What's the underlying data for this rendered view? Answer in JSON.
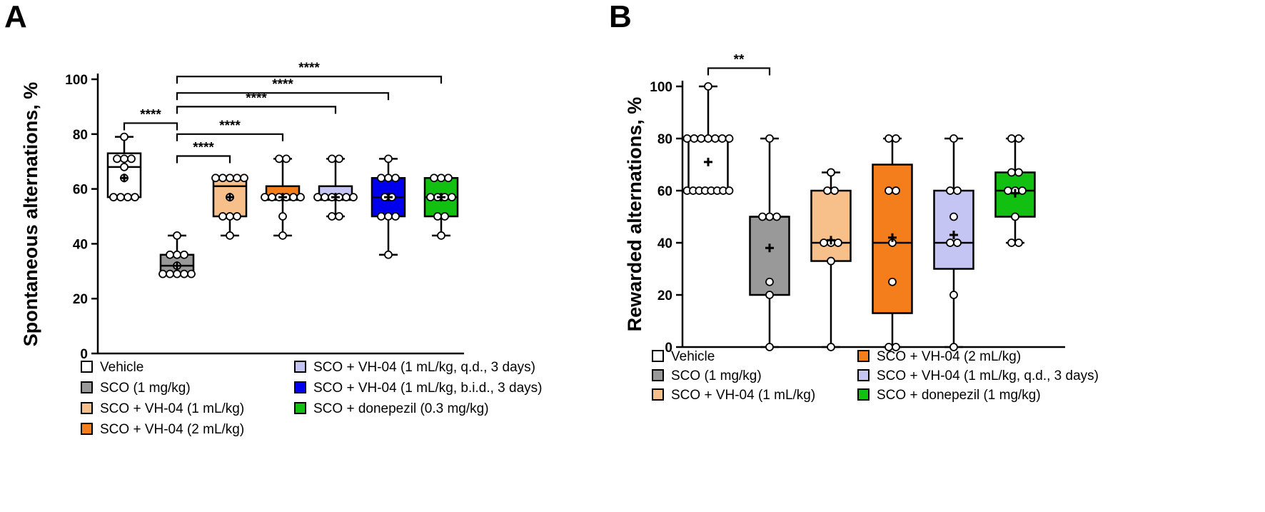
{
  "chart_data": [
    {
      "panel": "A",
      "type": "box",
      "ylabel": "Spontaneous alternations, %",
      "ylim": [
        0,
        100
      ],
      "yticks": [
        0,
        20,
        40,
        60,
        80,
        100
      ],
      "groups": [
        {
          "name": "Vehicle",
          "color": "#ffffff",
          "whisker": [
            57,
            79
          ],
          "q1": 57,
          "median": 68,
          "q3": 73,
          "mean": 64,
          "points": [
            57,
            57,
            57,
            57,
            64,
            68,
            71,
            71,
            71,
            79
          ]
        },
        {
          "name": "SCO (1 mg/kg)",
          "color": "#999999",
          "whisker": [
            29,
            43
          ],
          "q1": 29,
          "median": 32,
          "q3": 36,
          "mean": 32,
          "points": [
            29,
            29,
            29,
            29,
            29,
            32,
            36,
            36,
            36,
            43
          ]
        },
        {
          "name": "SCO + VH-04 (1 mL/kg)",
          "color": "#f7c08b",
          "whisker": [
            43,
            64
          ],
          "q1": 50,
          "median": 61,
          "q3": 64,
          "mean": 57,
          "points": [
            43,
            50,
            50,
            50,
            57,
            64,
            64,
            64,
            64,
            64
          ]
        },
        {
          "name": "SCO + VH-04 (2 mL/kg)",
          "color": "#f47d1c",
          "whisker": [
            43,
            71
          ],
          "q1": 56,
          "median": 57,
          "q3": 61,
          "mean": 57,
          "points": [
            43,
            50,
            57,
            57,
            57,
            57,
            57,
            57,
            71,
            71
          ]
        },
        {
          "name": "SCO + VH-04 (1 mL/kg, q.d., 3 days)",
          "color": "#c5c5f3",
          "whisker": [
            50,
            71
          ],
          "q1": 56,
          "median": 57,
          "q3": 61,
          "mean": 57,
          "points": [
            50,
            50,
            57,
            57,
            57,
            57,
            57,
            57,
            71,
            71
          ]
        },
        {
          "name": "SCO + VH-04 (1 mL/kg, b.i.d., 3 days)",
          "color": "#0000ee",
          "whisker": [
            36,
            71
          ],
          "q1": 50,
          "median": 57,
          "q3": 64,
          "mean": 57,
          "points": [
            36,
            50,
            50,
            50,
            57,
            57,
            64,
            64,
            64,
            71
          ]
        },
        {
          "name": "SCO + donepezil (0.3 mg/kg)",
          "color": "#11c011",
          "whisker": [
            43,
            64
          ],
          "q1": 50,
          "median": 57,
          "q3": 64,
          "mean": 57,
          "points": [
            43,
            50,
            50,
            57,
            57,
            57,
            57,
            64,
            64,
            64
          ]
        }
      ],
      "significance": [
        {
          "from": 0,
          "to": 1,
          "label": "****",
          "y": 84
        },
        {
          "from": 1,
          "to": 2,
          "label": "****",
          "y": 72
        },
        {
          "from": 1,
          "to": 3,
          "label": "****",
          "y": 80
        },
        {
          "from": 1,
          "to": 4,
          "label": "****",
          "y": 90
        },
        {
          "from": 1,
          "to": 5,
          "label": "****",
          "y": 95
        },
        {
          "from": 1,
          "to": 6,
          "label": "****",
          "y": 101
        }
      ],
      "legend_columns": [
        [
          0,
          1,
          2,
          3
        ],
        [
          4,
          5,
          6
        ]
      ]
    },
    {
      "panel": "B",
      "type": "box",
      "ylabel": "Rewarded alternations, %",
      "ylim": [
        0,
        100
      ],
      "yticks": [
        0,
        20,
        40,
        60,
        80,
        100
      ],
      "groups": [
        {
          "name": "Vehicle",
          "color": "#ffffff",
          "whisker": [
            60,
            100
          ],
          "q1": 60,
          "median": 80,
          "q3": 80,
          "mean": 71,
          "points": [
            60,
            60,
            60,
            60,
            60,
            60,
            60,
            60,
            80,
            80,
            80,
            80,
            80,
            80,
            80,
            100
          ]
        },
        {
          "name": "SCO (1 mg/kg)",
          "color": "#999999",
          "whisker": [
            0,
            80
          ],
          "q1": 20,
          "median": 50,
          "q3": 50,
          "mean": 38,
          "points": [
            0,
            20,
            25,
            50,
            50,
            50,
            80
          ]
        },
        {
          "name": "SCO + VH-04 (1 mL/kg)",
          "color": "#f7c08b",
          "whisker": [
            0,
            67
          ],
          "q1": 33,
          "median": 40,
          "q3": 60,
          "mean": 41,
          "points": [
            0,
            33,
            40,
            40,
            40,
            60,
            60,
            67
          ]
        },
        {
          "name": "SCO + VH-04 (2 mL/kg)",
          "color": "#f47d1c",
          "whisker": [
            0,
            80
          ],
          "q1": 13,
          "median": 40,
          "q3": 70,
          "mean": 42,
          "points": [
            0,
            0,
            25,
            40,
            60,
            60,
            80,
            80
          ]
        },
        {
          "name": "SCO + VH-04 (1 mL/kg, q.d., 3 days)",
          "color": "#c5c5f3",
          "whisker": [
            0,
            80
          ],
          "q1": 30,
          "median": 40,
          "q3": 60,
          "mean": 43,
          "points": [
            0,
            20,
            40,
            40,
            50,
            60,
            60,
            80
          ]
        },
        {
          "name": "SCO + donepezil (1 mg/kg)",
          "color": "#11c011",
          "whisker": [
            40,
            80
          ],
          "q1": 50,
          "median": 60,
          "q3": 67,
          "mean": 59,
          "points": [
            40,
            40,
            50,
            60,
            60,
            60,
            67,
            67,
            80,
            80
          ]
        }
      ],
      "significance": [
        {
          "from": 0,
          "to": 1,
          "label": "**",
          "y": 107
        }
      ],
      "legend_columns": [
        [
          0,
          1,
          2
        ],
        [
          3,
          4,
          5
        ]
      ]
    }
  ]
}
